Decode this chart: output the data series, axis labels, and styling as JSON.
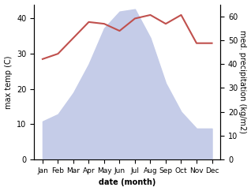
{
  "months": [
    "Jan",
    "Feb",
    "Mar",
    "Apr",
    "May",
    "Jun",
    "Jul",
    "Aug",
    "Sep",
    "Oct",
    "Nov",
    "Dec"
  ],
  "temperature": [
    28.5,
    30.0,
    34.5,
    39.0,
    38.5,
    36.5,
    40.0,
    41.0,
    38.5,
    41.0,
    33.0,
    33.0
  ],
  "precipitation_kg": [
    16,
    19,
    28,
    40,
    55,
    62,
    63,
    51,
    32,
    20,
    13,
    13
  ],
  "temp_color": "#c0504d",
  "precip_fill_color": "#c5cce8",
  "ylabel_left": "max temp (C)",
  "ylabel_right": "med. precipitation (kg/m2)",
  "xlabel": "date (month)",
  "ylim_left": [
    0,
    44
  ],
  "ylim_right": [
    0,
    65
  ],
  "yticks_left": [
    0,
    10,
    20,
    30,
    40
  ],
  "yticks_right": [
    0,
    10,
    20,
    30,
    40,
    50,
    60
  ],
  "background_color": "#ffffff"
}
